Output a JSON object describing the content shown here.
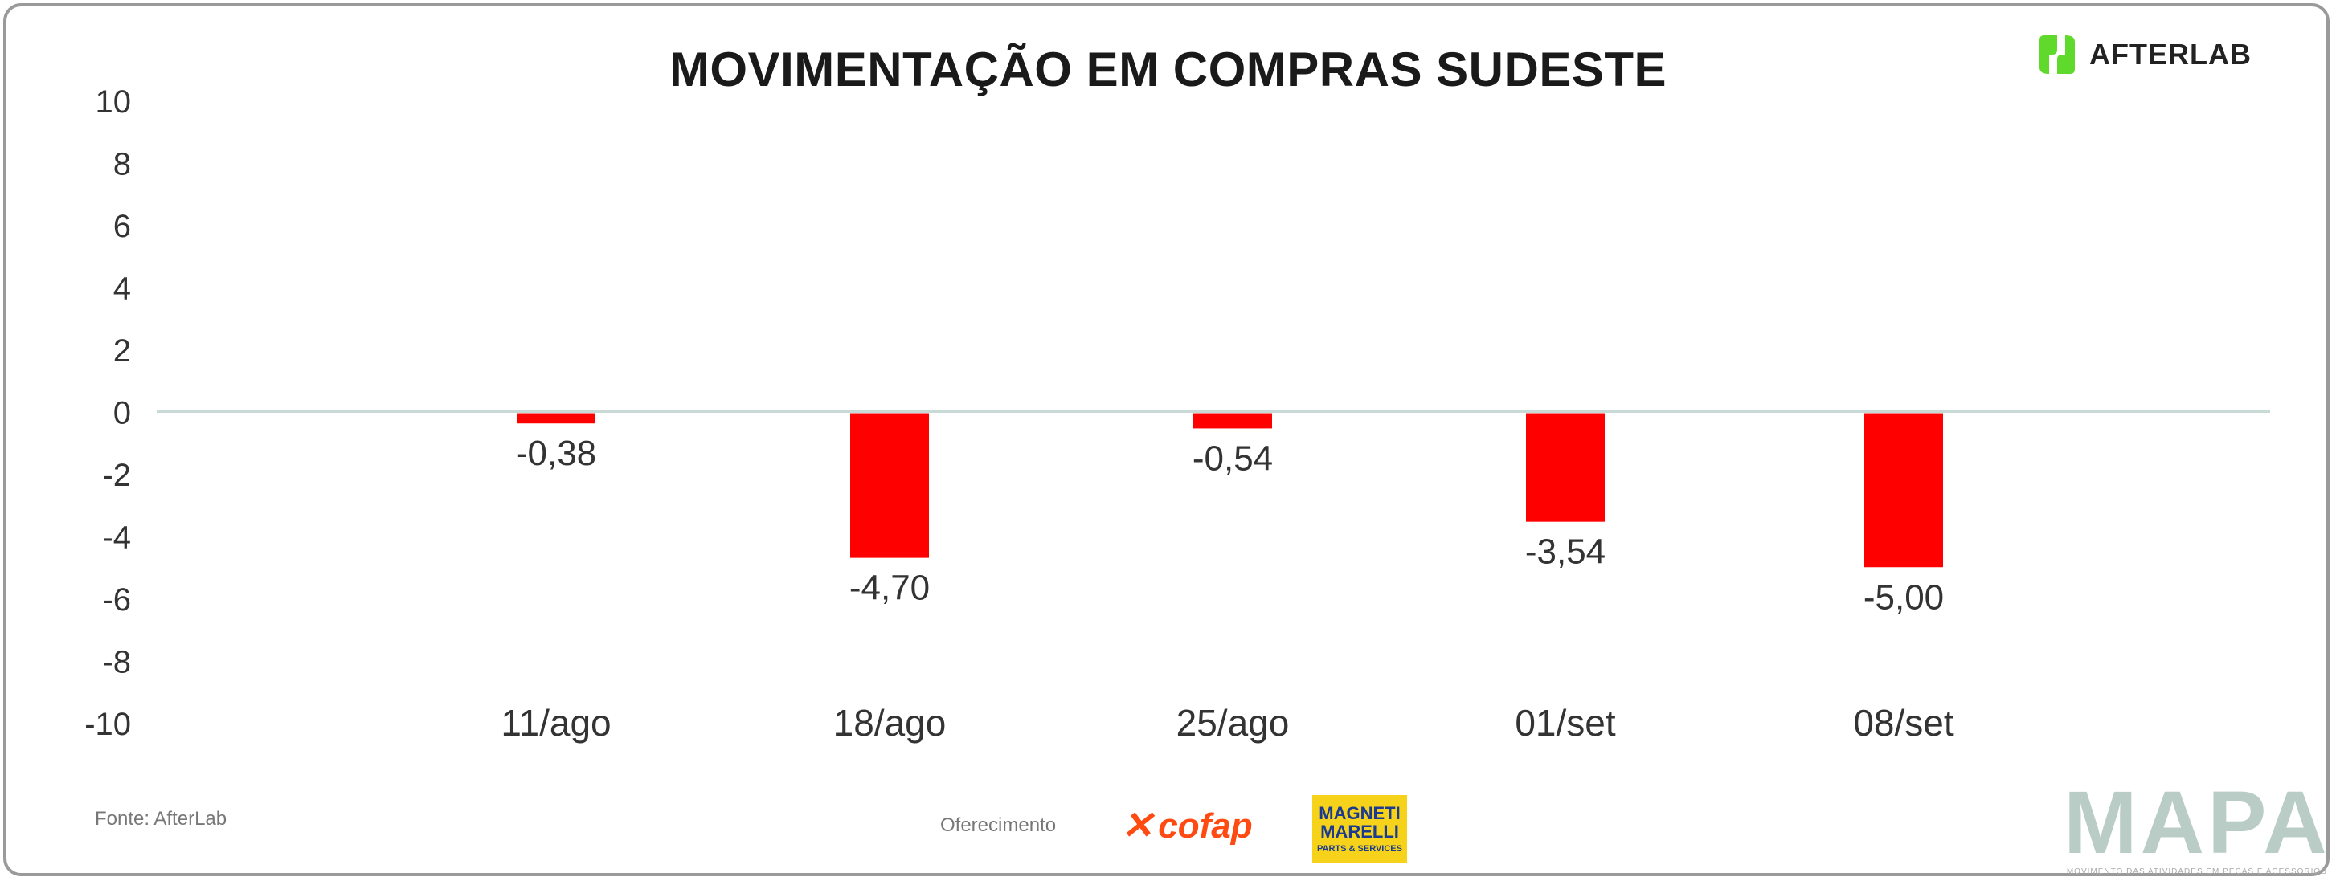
{
  "title": "MOVIMENTAÇÃO EM COMPRAS SUDESTE",
  "brand": {
    "name": "AFTERLAB",
    "color": "#5fd92b"
  },
  "source_label": "Fonte: AfterLab",
  "sponsor_label": "Oferecimento",
  "sponsors": {
    "cofap": "cofap",
    "magneti_main": "MAGNETI MARELLI",
    "magneti_sub": "PARTS & SERVICES"
  },
  "mapa": {
    "name": "MAPA",
    "tagline": "MOVIMENTO DAS ATIVIDADES EM PEÇAS E ACESSÓRIOS"
  },
  "colors": {
    "bar": "#ff0000",
    "zero_line": "#c9d9d6",
    "text": "#333333"
  },
  "chart_data": {
    "type": "bar",
    "title": "MOVIMENTAÇÃO EM COMPRAS SUDESTE",
    "categories": [
      "11/ago",
      "18/ago",
      "25/ago",
      "01/set",
      "08/set"
    ],
    "values": [
      -0.38,
      -4.7,
      -0.54,
      -3.54,
      -5.0
    ],
    "value_labels": [
      "-0,38",
      "-4,70",
      "-0,54",
      "-3,54",
      "-5,00"
    ],
    "ylim": [
      -10,
      10
    ],
    "yticks": [
      10,
      8,
      6,
      4,
      2,
      0,
      -2,
      -4,
      -6,
      -8,
      -10
    ],
    "grid": false,
    "legend": "none"
  }
}
